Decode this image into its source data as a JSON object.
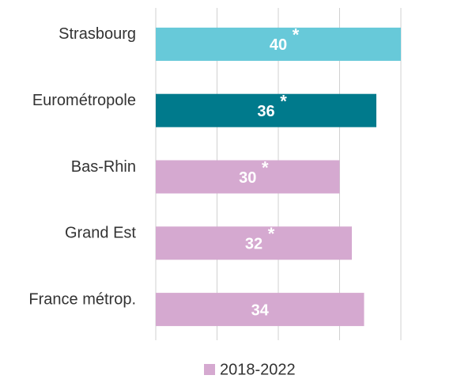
{
  "chart_data": {
    "type": "bar",
    "orientation": "horizontal",
    "categories": [
      "Strasbourg",
      "Eurométropole",
      "Bas-Rhin",
      "Grand Est",
      "France métrop."
    ],
    "series": [
      {
        "name": "2018-2022",
        "color": "#d5a9d0",
        "colors": [
          "#67c9d9",
          "#007a8c",
          "#d5a9d0",
          "#d5a9d0",
          "#d5a9d0"
        ],
        "values": [
          40,
          36,
          30,
          32,
          34
        ],
        "annotations": [
          "*",
          "*",
          "*",
          "*",
          null
        ]
      }
    ],
    "xlim": [
      0,
      40
    ],
    "xticks": [
      0,
      10,
      20,
      30,
      40
    ],
    "grid": true,
    "legend": "bottom"
  }
}
